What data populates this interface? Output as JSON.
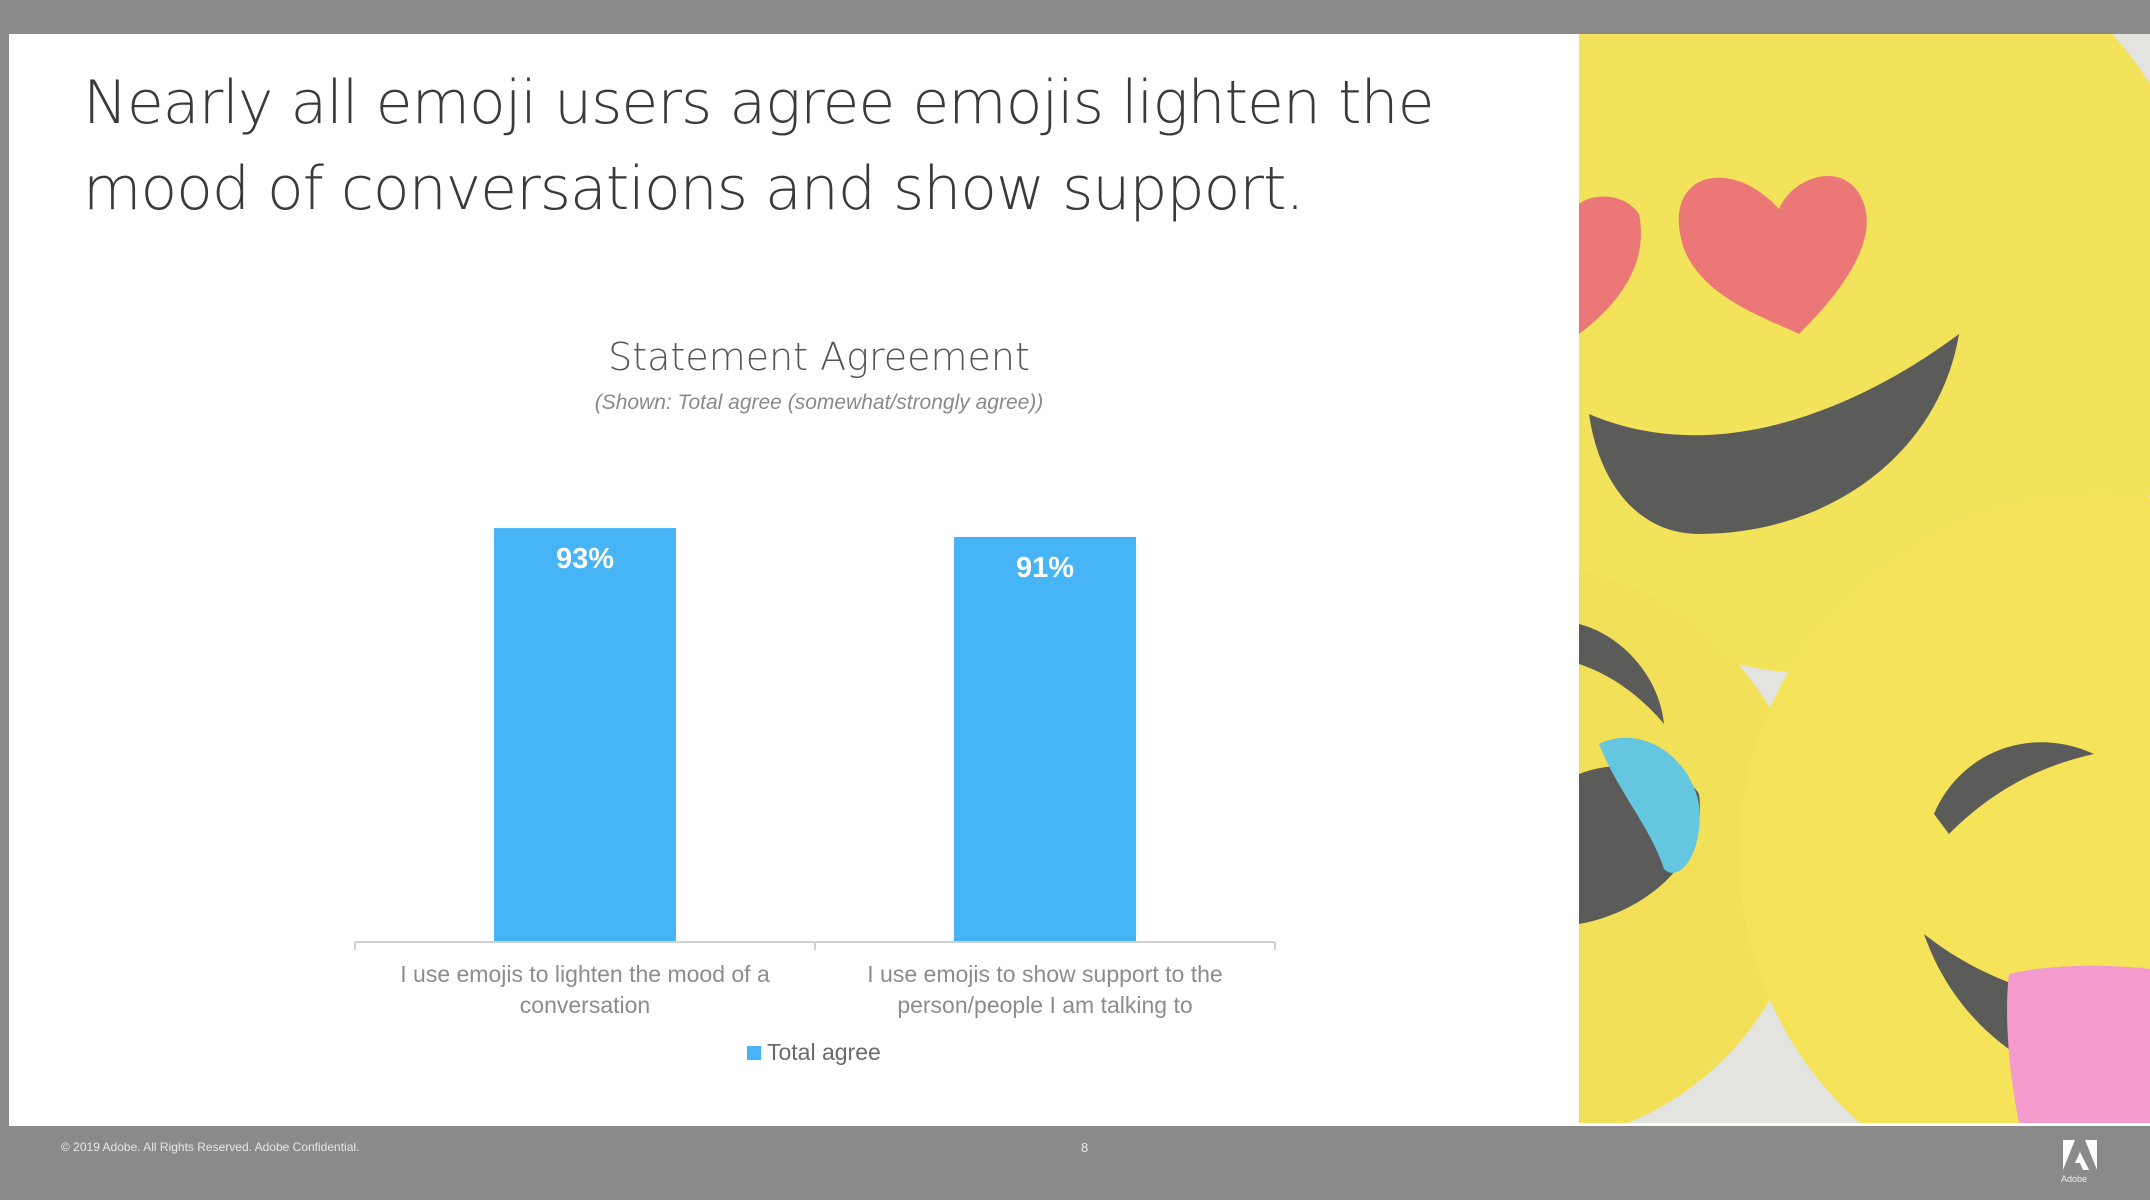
{
  "slide": {
    "headline_line1": "Nearly all emoji users agree emojis lighten the",
    "headline_line2": "mood of conversations and show support."
  },
  "footer": {
    "copyright": "© 2019 Adobe. All Rights Reserved. Adobe Confidential.",
    "page_number": "8",
    "logo_text": "Adobe"
  },
  "photo": {
    "description_icon": "emoji-balls-photo"
  },
  "colors": {
    "bar": "#47b4f5",
    "axis": "#d0d0d0",
    "headline": "#3a3a3a",
    "footer_bg": "#8a8a8a",
    "emoji_yellow": "#f3de2a",
    "heart_red": "#e74b4b"
  },
  "chart_data": {
    "type": "bar",
    "title": "Statement Agreement",
    "subtitle": "(Shown: Total agree (somewhat/strongly agree))",
    "categories": [
      "I use emojis to lighten the mood of a conversation",
      "I use emojis to show support to the person/people I am talking to"
    ],
    "category_lines": [
      [
        "I use emojis to lighten the mood of a",
        "conversation"
      ],
      [
        "I use emojis to show support to the",
        "person/people I am talking to"
      ]
    ],
    "series": [
      {
        "name": "Total agree",
        "values": [
          93,
          91
        ]
      }
    ],
    "data_labels": [
      "93%",
      "91%"
    ],
    "ylim": [
      0,
      100
    ],
    "grid": false,
    "legend": "bottom-center"
  }
}
